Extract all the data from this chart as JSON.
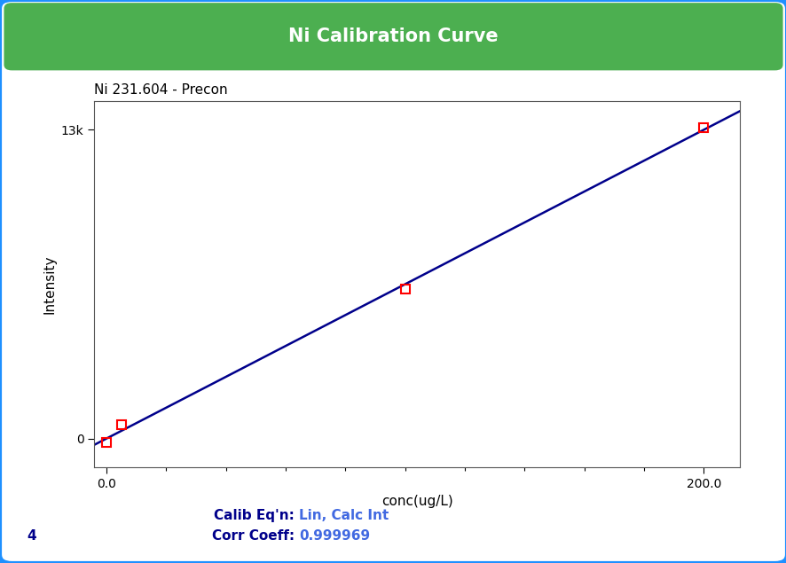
{
  "title": "Ni Calibration Curve",
  "subtitle": "Ni 231.604 - Precon",
  "xlabel": "conc(ug/L)",
  "ylabel": "Intensity",
  "x_data": [
    0.0,
    5.0,
    100.0,
    200.0
  ],
  "y_data": [
    -150,
    600,
    6300,
    13100
  ],
  "xlim": [
    -4,
    212
  ],
  "ylim": [
    -1200,
    14200
  ],
  "x_ticks": [
    0.0,
    200.0
  ],
  "x_tick_labels": [
    "0.0",
    "200.0"
  ],
  "y_ticks": [
    0,
    13000
  ],
  "y_tick_labels": [
    "0",
    "13k"
  ],
  "line_color": "#00008B",
  "marker_color": "#FF0000",
  "title_bg_color": "#4CAF50",
  "title_text_color": "#FFFFFF",
  "outer_border_color": "#1E90FF",
  "inner_bg_color": "#FFFFFF",
  "calib_eq_label": "Calib Eq'n: ",
  "calib_eq_value": "Lin, Calc Int",
  "corr_coeff_label": "Corr Coeff: ",
  "corr_coeff_value": "0.999969",
  "annotation_color": "#00008B",
  "annotation_value_color": "#4169E1",
  "n_points_label": "4",
  "subtitle_color": "#000000",
  "xlabel_color": "#000000",
  "ylabel_color": "#000000",
  "title_fontsize": 15,
  "subtitle_fontsize": 11,
  "annotation_fontsize": 11,
  "tick_fontsize": 10,
  "axis_label_fontsize": 11
}
